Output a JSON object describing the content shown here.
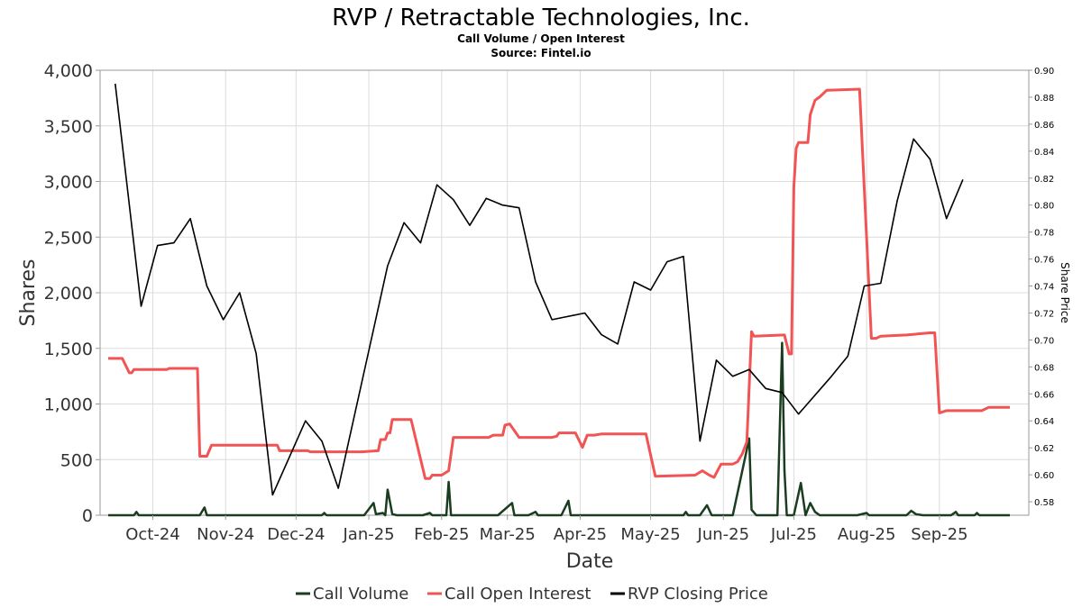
{
  "chart_data": {
    "type": "line",
    "title": "RVP / Retractable Technologies, Inc.",
    "subtitle": "Call Volume / Open Interest",
    "source": "Source: Fintel.io",
    "xlabel": "Date",
    "ylabel": "Shares",
    "y2label": "Share Price",
    "ylim": [
      0,
      4000
    ],
    "y2lim": [
      0.57,
      0.9
    ],
    "grid": true,
    "legend_position": "bottom",
    "x_ticks": [
      "2024-10-01",
      "2024-11-01",
      "2024-12-01",
      "2025-01-01",
      "2025-02-01",
      "2025-03-01",
      "2025-04-01",
      "2025-05-01",
      "2025-06-01",
      "2025-07-01",
      "2025-08-01",
      "2025-09-01"
    ],
    "x_tick_labels": [
      "Oct-24",
      "Nov-24",
      "Dec-24",
      "Jan-25",
      "Feb-25",
      "Mar-25",
      "Apr-25",
      "May-25",
      "Jun-25",
      "Jul-25",
      "Aug-25",
      "Sep-25"
    ],
    "y_ticks": [
      0,
      500,
      1000,
      1500,
      2000,
      2500,
      3000,
      3500,
      4000
    ],
    "y_tick_labels": [
      "0",
      "500",
      "1,000",
      "1,500",
      "2,000",
      "2,500",
      "3,000",
      "3,500",
      "4,000"
    ],
    "y2_ticks": [
      0.58,
      0.6,
      0.62,
      0.64,
      0.66,
      0.68,
      0.7,
      0.72,
      0.74,
      0.76,
      0.78,
      0.8,
      0.82,
      0.84,
      0.86,
      0.88,
      0.9
    ],
    "y2_tick_labels": [
      "0.58",
      "0.60",
      "0.62",
      "0.64",
      "0.66",
      "0.68",
      "0.70",
      "0.72",
      "0.74",
      "0.76",
      "0.78",
      "0.80",
      "0.82",
      "0.84",
      "0.86",
      "0.88",
      "0.90"
    ],
    "series": [
      {
        "name": "Call Volume",
        "color": "#1a3d1f",
        "axis": "left",
        "points": [
          [
            "2024-09-12",
            0
          ],
          [
            "2024-09-23",
            0
          ],
          [
            "2024-09-24",
            30
          ],
          [
            "2024-09-25",
            0
          ],
          [
            "2024-10-15",
            0
          ],
          [
            "2024-10-21",
            0
          ],
          [
            "2024-10-23",
            70
          ],
          [
            "2024-10-24",
            0
          ],
          [
            "2024-12-12",
            0
          ],
          [
            "2024-12-13",
            20
          ],
          [
            "2024-12-14",
            0
          ],
          [
            "2024-12-30",
            0
          ],
          [
            "2025-01-03",
            110
          ],
          [
            "2025-01-04",
            10
          ],
          [
            "2025-01-07",
            20
          ],
          [
            "2025-01-08",
            0
          ],
          [
            "2025-01-09",
            230
          ],
          [
            "2025-01-11",
            10
          ],
          [
            "2025-01-13",
            0
          ],
          [
            "2025-01-24",
            0
          ],
          [
            "2025-01-27",
            20
          ],
          [
            "2025-01-28",
            0
          ],
          [
            "2025-02-03",
            0
          ],
          [
            "2025-02-04",
            300
          ],
          [
            "2025-02-05",
            0
          ],
          [
            "2025-02-25",
            0
          ],
          [
            "2025-03-03",
            110
          ],
          [
            "2025-03-04",
            0
          ],
          [
            "2025-03-10",
            0
          ],
          [
            "2025-03-13",
            30
          ],
          [
            "2025-03-14",
            0
          ],
          [
            "2025-03-24",
            0
          ],
          [
            "2025-03-27",
            130
          ],
          [
            "2025-03-28",
            0
          ],
          [
            "2025-05-15",
            0
          ],
          [
            "2025-05-16",
            30
          ],
          [
            "2025-05-17",
            0
          ],
          [
            "2025-05-22",
            0
          ],
          [
            "2025-05-25",
            90
          ],
          [
            "2025-05-27",
            0
          ],
          [
            "2025-06-05",
            0
          ],
          [
            "2025-06-12",
            690
          ],
          [
            "2025-06-13",
            50
          ],
          [
            "2025-06-15",
            0
          ],
          [
            "2025-06-24",
            0
          ],
          [
            "2025-06-26",
            1550
          ],
          [
            "2025-06-27",
            400
          ],
          [
            "2025-06-28",
            0
          ],
          [
            "2025-07-01",
            0
          ],
          [
            "2025-07-04",
            290
          ],
          [
            "2025-07-06",
            0
          ],
          [
            "2025-07-08",
            110
          ],
          [
            "2025-07-10",
            30
          ],
          [
            "2025-07-12",
            0
          ],
          [
            "2025-07-28",
            0
          ],
          [
            "2025-08-01",
            20
          ],
          [
            "2025-08-02",
            0
          ],
          [
            "2025-08-18",
            0
          ],
          [
            "2025-08-20",
            40
          ],
          [
            "2025-08-22",
            10
          ],
          [
            "2025-08-25",
            0
          ],
          [
            "2025-09-06",
            0
          ],
          [
            "2025-09-08",
            30
          ],
          [
            "2025-09-09",
            0
          ],
          [
            "2025-09-16",
            0
          ],
          [
            "2025-09-17",
            20
          ],
          [
            "2025-09-18",
            0
          ],
          [
            "2025-10-01",
            0
          ]
        ]
      },
      {
        "name": "Call Open Interest",
        "color": "#f05454",
        "axis": "left",
        "points": [
          [
            "2024-09-12",
            1410
          ],
          [
            "2024-09-18",
            1410
          ],
          [
            "2024-09-21",
            1280
          ],
          [
            "2024-09-22",
            1280
          ],
          [
            "2024-09-23",
            1310
          ],
          [
            "2024-10-07",
            1310
          ],
          [
            "2024-10-08",
            1320
          ],
          [
            "2024-10-20",
            1320
          ],
          [
            "2024-10-21",
            530
          ],
          [
            "2024-10-24",
            530
          ],
          [
            "2024-10-26",
            630
          ],
          [
            "2024-11-23",
            630
          ],
          [
            "2024-11-24",
            580
          ],
          [
            "2024-12-06",
            580
          ],
          [
            "2024-12-07",
            570
          ],
          [
            "2024-12-28",
            570
          ],
          [
            "2024-12-29",
            570
          ],
          [
            "2025-01-05",
            580
          ],
          [
            "2025-01-06",
            680
          ],
          [
            "2025-01-08",
            680
          ],
          [
            "2025-01-09",
            740
          ],
          [
            "2025-01-10",
            740
          ],
          [
            "2025-01-11",
            860
          ],
          [
            "2025-01-19",
            860
          ],
          [
            "2025-01-25",
            330
          ],
          [
            "2025-01-27",
            330
          ],
          [
            "2025-01-28",
            360
          ],
          [
            "2025-02-01",
            360
          ],
          [
            "2025-02-04",
            400
          ],
          [
            "2025-02-06",
            700
          ],
          [
            "2025-02-21",
            700
          ],
          [
            "2025-02-23",
            720
          ],
          [
            "2025-02-27",
            720
          ],
          [
            "2025-02-28",
            810
          ],
          [
            "2025-03-02",
            820
          ],
          [
            "2025-03-06",
            700
          ],
          [
            "2025-03-20",
            700
          ],
          [
            "2025-03-22",
            710
          ],
          [
            "2025-03-23",
            740
          ],
          [
            "2025-03-30",
            740
          ],
          [
            "2025-04-02",
            610
          ],
          [
            "2025-04-04",
            720
          ],
          [
            "2025-04-07",
            720
          ],
          [
            "2025-04-10",
            730
          ],
          [
            "2025-04-29",
            730
          ],
          [
            "2025-05-03",
            350
          ],
          [
            "2025-05-20",
            360
          ],
          [
            "2025-05-23",
            400
          ],
          [
            "2025-05-26",
            360
          ],
          [
            "2025-05-28",
            340
          ],
          [
            "2025-05-31",
            460
          ],
          [
            "2025-06-05",
            460
          ],
          [
            "2025-06-07",
            480
          ],
          [
            "2025-06-09",
            550
          ],
          [
            "2025-06-11",
            660
          ],
          [
            "2025-06-13",
            1650
          ],
          [
            "2025-06-14",
            1610
          ],
          [
            "2025-06-27",
            1620
          ],
          [
            "2025-06-29",
            1450
          ],
          [
            "2025-06-30",
            1450
          ],
          [
            "2025-07-01",
            2950
          ],
          [
            "2025-07-02",
            3300
          ],
          [
            "2025-07-03",
            3350
          ],
          [
            "2025-07-07",
            3350
          ],
          [
            "2025-07-08",
            3600
          ],
          [
            "2025-07-10",
            3730
          ],
          [
            "2025-07-12",
            3760
          ],
          [
            "2025-07-15",
            3820
          ],
          [
            "2025-07-29",
            3830
          ],
          [
            "2025-08-03",
            1590
          ],
          [
            "2025-08-05",
            1590
          ],
          [
            "2025-08-07",
            1610
          ],
          [
            "2025-08-18",
            1620
          ],
          [
            "2025-08-28",
            1640
          ],
          [
            "2025-08-30",
            1640
          ],
          [
            "2025-09-01",
            920
          ],
          [
            "2025-09-04",
            940
          ],
          [
            "2025-09-19",
            940
          ],
          [
            "2025-09-22",
            970
          ],
          [
            "2025-10-01",
            970
          ]
        ]
      },
      {
        "name": "RVP Closing Price",
        "color": "#000000",
        "axis": "right",
        "points": [
          [
            "2024-09-15",
            0.89
          ],
          [
            "2024-09-26",
            0.725
          ],
          [
            "2024-10-03",
            0.77
          ],
          [
            "2024-10-10",
            0.772
          ],
          [
            "2024-10-17",
            0.79
          ],
          [
            "2024-10-24",
            0.74
          ],
          [
            "2024-10-31",
            0.715
          ],
          [
            "2024-11-07",
            0.735
          ],
          [
            "2024-11-14",
            0.69
          ],
          [
            "2024-11-21",
            0.585
          ],
          [
            "2024-12-05",
            0.64
          ],
          [
            "2024-12-12",
            0.625
          ],
          [
            "2024-12-19",
            0.59
          ],
          [
            "2025-01-09",
            0.755
          ],
          [
            "2025-01-16",
            0.787
          ],
          [
            "2025-01-23",
            0.772
          ],
          [
            "2025-01-30",
            0.815
          ],
          [
            "2025-02-06",
            0.804
          ],
          [
            "2025-02-13",
            0.785
          ],
          [
            "2025-02-20",
            0.805
          ],
          [
            "2025-02-27",
            0.8
          ],
          [
            "2025-03-06",
            0.798
          ],
          [
            "2025-03-13",
            0.743
          ],
          [
            "2025-03-20",
            0.715
          ],
          [
            "2025-04-03",
            0.72
          ],
          [
            "2025-04-10",
            0.704
          ],
          [
            "2025-04-17",
            0.697
          ],
          [
            "2025-04-24",
            0.743
          ],
          [
            "2025-05-01",
            0.737
          ],
          [
            "2025-05-08",
            0.758
          ],
          [
            "2025-05-15",
            0.762
          ],
          [
            "2025-05-22",
            0.625
          ],
          [
            "2025-05-29",
            0.685
          ],
          [
            "2025-06-05",
            0.673
          ],
          [
            "2025-06-12",
            0.678
          ],
          [
            "2025-06-19",
            0.664
          ],
          [
            "2025-06-26",
            0.661
          ],
          [
            "2025-07-03",
            0.645
          ],
          [
            "2025-07-17",
            0.673
          ],
          [
            "2025-07-24",
            0.688
          ],
          [
            "2025-07-31",
            0.74
          ],
          [
            "2025-08-07",
            0.742
          ],
          [
            "2025-08-14",
            0.803
          ],
          [
            "2025-08-21",
            0.849
          ],
          [
            "2025-08-28",
            0.834
          ],
          [
            "2025-09-04",
            0.79
          ],
          [
            "2025-09-11",
            0.819
          ]
        ]
      }
    ]
  }
}
